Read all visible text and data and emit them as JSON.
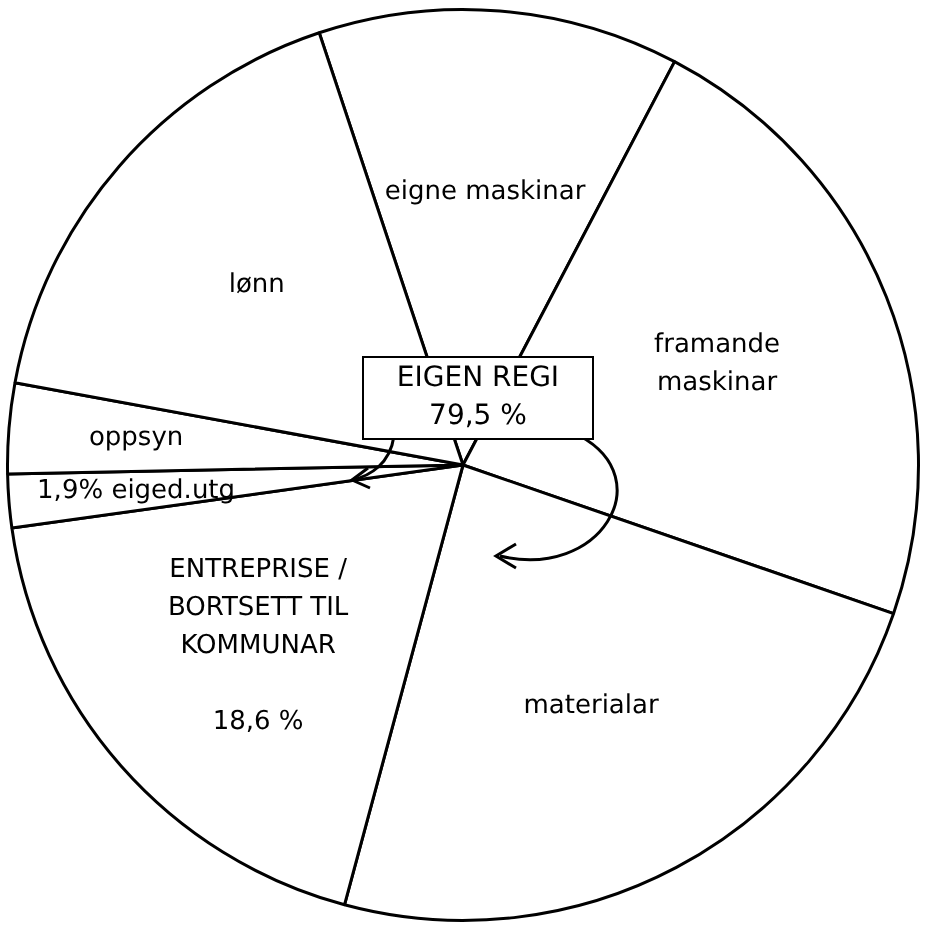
{
  "chart_data": {
    "type": "pie",
    "categories": [
      "eigne maskinar",
      "framande maskinar",
      "materialar",
      "ENTREPRISE / BORTSETT TIL KOMMUNAR",
      "eiged.utg",
      "oppsyn",
      "lønn"
    ],
    "values": [
      12.8,
      22.6,
      23.9,
      18.6,
      1.9,
      3.2,
      17.0
    ],
    "value_labels": [
      null,
      null,
      null,
      "18,6 %",
      "1,9%",
      null,
      null
    ],
    "colors": [
      "#ffffff",
      "#ffffff",
      "#ffffff",
      "#ffffff",
      "#ffffff",
      "#ffffff",
      "#ffffff"
    ],
    "annotations": [
      "EIGEN REGI 79,5 %"
    ],
    "legend": false
  }
}
